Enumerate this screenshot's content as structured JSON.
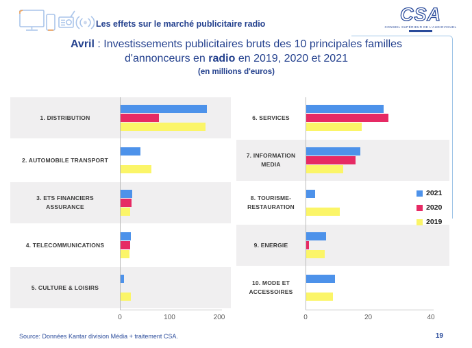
{
  "header": {
    "tagline": "Les effets sur le marché publicitaire radio",
    "logo": {
      "text": "CSA",
      "caption": "CONSEIL SUPÉRIEUR DE L'AUDIOVISUEL"
    },
    "icons": [
      "monitor-icon",
      "smartphone-icon",
      "radio-icon",
      "broadcast-waves-icon"
    ]
  },
  "title": {
    "line1_bold": "Avril",
    "line1_rest": " : Investissements publicitaires bruts des 10 principales familles",
    "line2_pre": "d'annonceurs en ",
    "line2_bold": "radio",
    "line2_post": " en 2019, 2020 et 2021",
    "subtitle": "(en millions d'euros)"
  },
  "legend": {
    "position": "right-middle",
    "items": [
      {
        "label": "2021",
        "color": "#4d92ea"
      },
      {
        "label": "2020",
        "color": "#e62a64"
      },
      {
        "label": "2019",
        "color": "#fbf568"
      }
    ]
  },
  "colors": {
    "title_blue": "#24418e",
    "bar_blue_2021": "#4d92ea",
    "bar_red_2020": "#e62a64",
    "bar_yellow_2019": "#fbf568",
    "band_gray": "#f0eff0",
    "axis_gray": "#c4c4c4",
    "textbox_border": "#9dc3e6"
  },
  "footer": {
    "source": "Source: Données Kantar division Média + traitement CSA.",
    "page_number": "19"
  },
  "chart_data": [
    {
      "type": "bar",
      "orientation": "horizontal",
      "unit": "millions d'euros",
      "categories": [
        "1. DISTRIBUTION",
        "2. AUTOMOBILE TRANSPORT",
        "3. ETS FINANCIERS ASSURANCE",
        "4. TELECOMMUNICATIONS",
        "5. CULTURE & LOISIRS"
      ],
      "series": [
        {
          "name": "2021",
          "color": "#4d92ea",
          "values": [
            175,
            42,
            25,
            22,
            8
          ]
        },
        {
          "name": "2020",
          "color": "#e62a64",
          "values": [
            79,
            2,
            24,
            20,
            1.5
          ]
        },
        {
          "name": "2019",
          "color": "#fbf568",
          "values": [
            172,
            64,
            20,
            19,
            22
          ]
        }
      ],
      "xlim": [
        0,
        200
      ],
      "xticks": [
        0,
        100,
        200
      ],
      "shaded_rows": [
        0,
        2,
        4
      ],
      "grid": false
    },
    {
      "type": "bar",
      "orientation": "horizontal",
      "unit": "millions d'euros",
      "categories": [
        "6. SERVICES",
        "7. INFORMATION MEDIA",
        "8. TOURISME- RESTAURATION",
        "9. ENERGIE",
        "10. MODE ET ACCESSOIRES"
      ],
      "series": [
        {
          "name": "2021",
          "color": "#4d92ea",
          "values": [
            25,
            17.5,
            3,
            6.5,
            9.3
          ]
        },
        {
          "name": "2020",
          "color": "#e62a64",
          "values": [
            26.5,
            16,
            0.3,
            1.2,
            0
          ]
        },
        {
          "name": "2019",
          "color": "#fbf568",
          "values": [
            18,
            12,
            11,
            6.2,
            8.7
          ]
        }
      ],
      "xlim": [
        0,
        40
      ],
      "xticks": [
        0,
        20,
        40
      ],
      "shaded_rows": [
        1,
        3
      ],
      "grid": false
    }
  ]
}
